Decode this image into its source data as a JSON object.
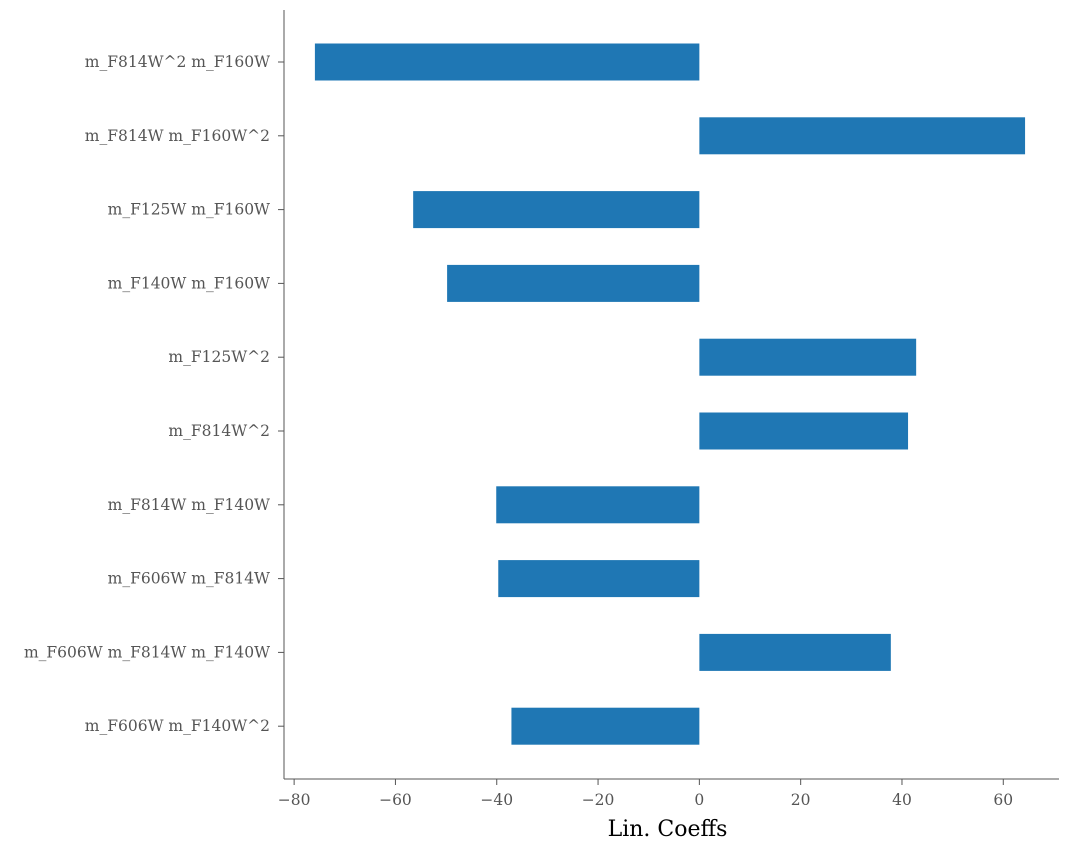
{
  "chart_data": {
    "type": "bar",
    "orientation": "horizontal",
    "title": "",
    "xlabel": "Lin. Coeffs",
    "ylabel": "",
    "grid": false,
    "bar_color": "#1f77b4",
    "axis_color": "#555555",
    "xlim": [
      -82,
      71
    ],
    "xticks": [
      -80,
      -60,
      -40,
      -20,
      0,
      20,
      40,
      60
    ],
    "xtick_labels": [
      "−80",
      "−60",
      "−40",
      "−20",
      "0",
      "20",
      "40",
      "60"
    ],
    "categories": [
      "m_F814W^2 m_F160W",
      "m_F814W m_F160W^2",
      "m_F125W m_F160W",
      "m_F140W m_F160W",
      "m_F125W^2",
      "m_F814W^2",
      "m_F814W m_F140W",
      "m_F606W m_F814W",
      "m_F606W m_F814W m_F140W",
      "m_F606W m_F140W^2"
    ],
    "values": [
      -75.9,
      64.3,
      -56.5,
      -49.8,
      42.8,
      41.2,
      -40.1,
      -39.7,
      37.8,
      -37.1
    ]
  }
}
